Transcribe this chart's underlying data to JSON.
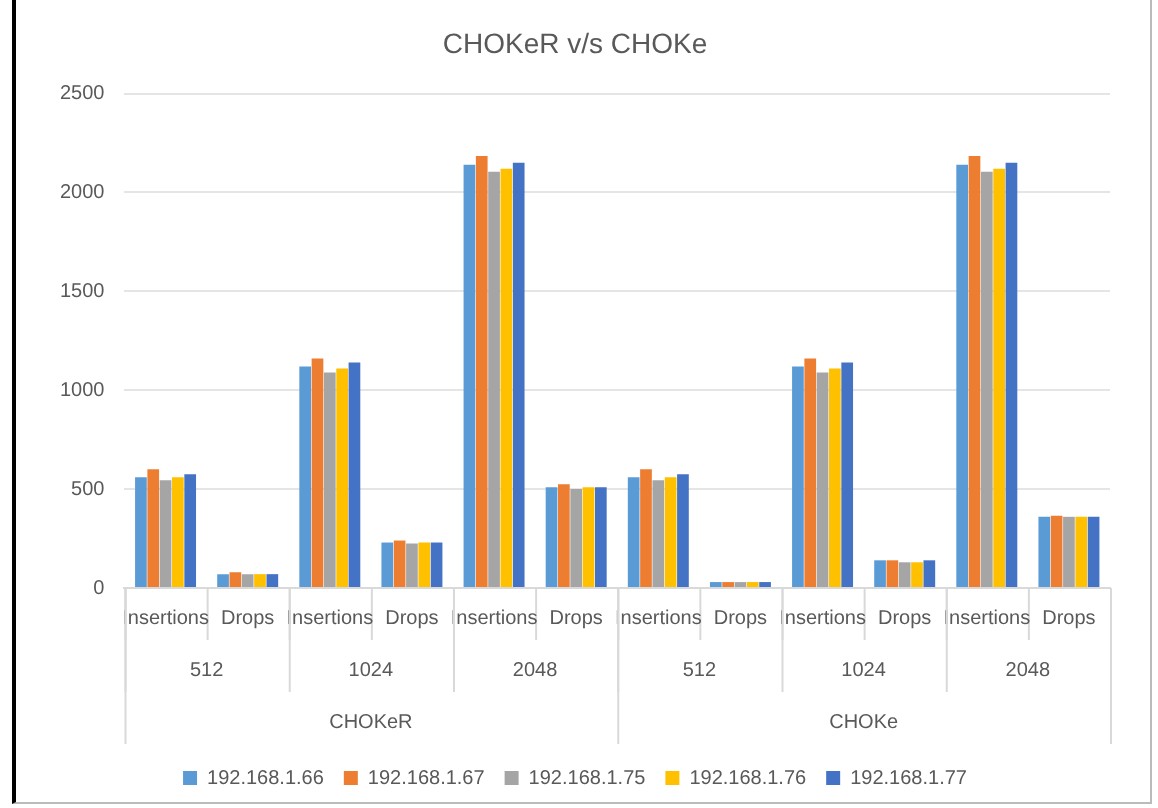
{
  "chart_data": {
    "type": "bar",
    "title": "CHOKeR v/s CHOKe",
    "categories": [
      "Insertions",
      "Drops",
      "Insertions",
      "Drops",
      "Insertions",
      "Drops",
      "Insertions",
      "Drops",
      "Insertions",
      "Drops",
      "Insertions",
      "Drops"
    ],
    "annotations": [
      "512",
      "1024",
      "2048",
      "512",
      "1024",
      "2048",
      "CHOKeR",
      "CHOKe"
    ],
    "series": [
      {
        "name": "192.168.1.66",
        "color": "#5b9bd5",
        "values": [
          560,
          70,
          1120,
          230,
          2140,
          510,
          560,
          30,
          1120,
          140,
          2140,
          360
        ]
      },
      {
        "name": "192.168.1.67",
        "color": "#ed7d31",
        "values": [
          600,
          80,
          1160,
          240,
          2185,
          525,
          600,
          30,
          1160,
          140,
          2185,
          365
        ]
      },
      {
        "name": "192.168.1.75",
        "color": "#a5a5a5",
        "values": [
          545,
          70,
          1090,
          225,
          2105,
          500,
          545,
          30,
          1090,
          130,
          2105,
          360
        ]
      },
      {
        "name": "192.168.1.76",
        "color": "#ffc000",
        "values": [
          560,
          70,
          1110,
          230,
          2120,
          510,
          560,
          30,
          1110,
          130,
          2120,
          360
        ]
      },
      {
        "name": "192.168.1.77",
        "color": "#4472c4",
        "values": [
          575,
          70,
          1140,
          230,
          2150,
          510,
          575,
          30,
          1140,
          140,
          2150,
          360
        ]
      }
    ],
    "ylim": [
      0,
      2500
    ],
    "yticks": [
      0,
      500,
      1000,
      1500,
      2000,
      2500
    ],
    "grid": "y",
    "legend": "bottom"
  }
}
